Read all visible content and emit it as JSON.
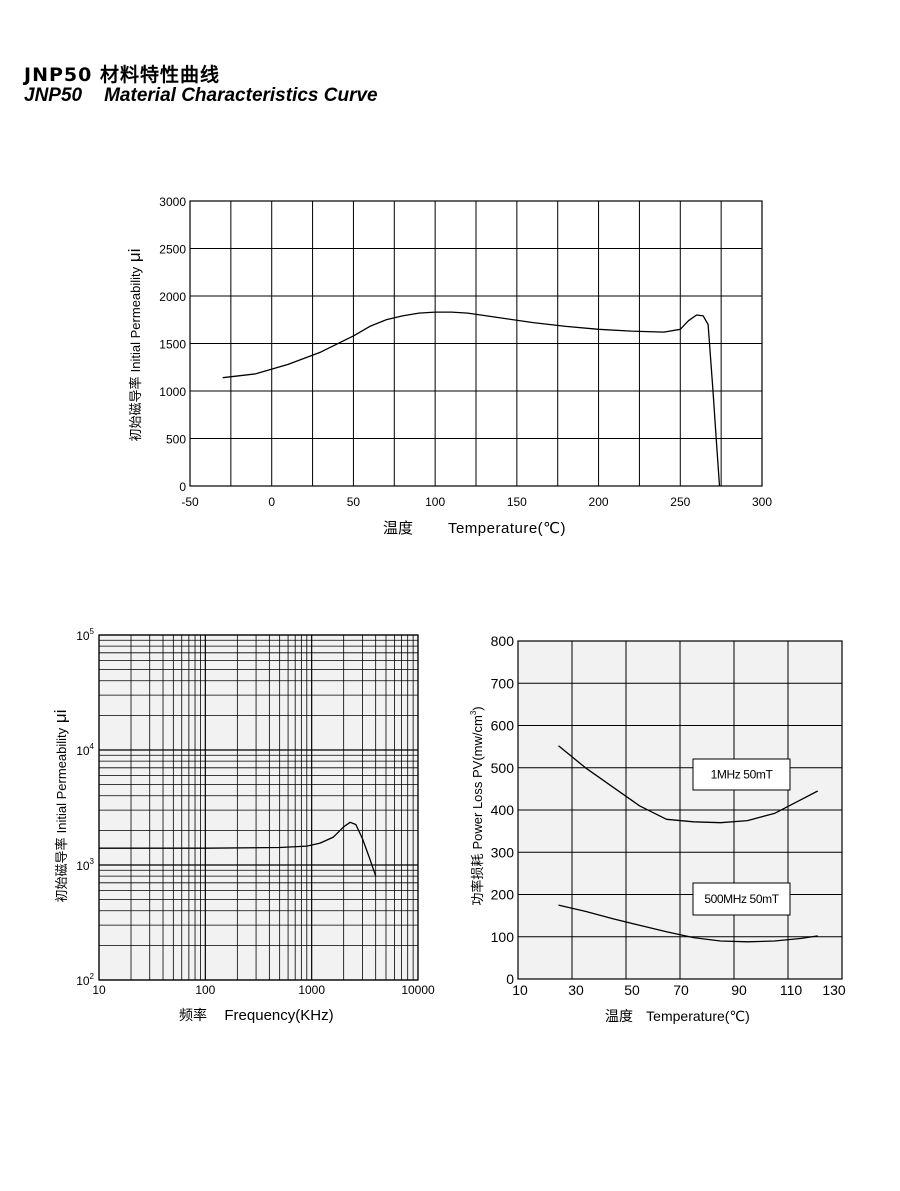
{
  "header": {
    "model": "JNP50",
    "title_cn": "材料特性曲线",
    "title_en": "Material Characteristics Curve"
  },
  "chart_data": [
    {
      "id": "mu-vs-temp",
      "type": "line",
      "title": "",
      "xlabel_cn": "温度",
      "xlabel": "Temperature(℃)",
      "ylabel_cn": "初始磁导率",
      "ylabel": "Initial Permeability",
      "ylabel_symbol": "μi",
      "xlim": [
        -50,
        300
      ],
      "ylim": [
        0,
        3000
      ],
      "xticks": [
        -50,
        0,
        50,
        100,
        150,
        200,
        250,
        300
      ],
      "yticks": [
        0,
        500,
        1000,
        1500,
        2000,
        2500,
        3000
      ],
      "grid": true,
      "series": [
        {
          "x": [
            -30,
            -10,
            10,
            30,
            50,
            60,
            70,
            80,
            90,
            100,
            110,
            120,
            140,
            160,
            180,
            200,
            220,
            240,
            250,
            255,
            260,
            264,
            267,
            270,
            272,
            274
          ],
          "y": [
            1140,
            1180,
            1280,
            1410,
            1580,
            1680,
            1750,
            1790,
            1820,
            1830,
            1830,
            1820,
            1770,
            1720,
            1680,
            1650,
            1630,
            1620,
            1650,
            1740,
            1800,
            1790,
            1700,
            1000,
            500,
            0
          ]
        }
      ]
    },
    {
      "id": "mu-vs-freq",
      "type": "line",
      "title": "",
      "xlabel_cn": "频率",
      "xlabel": "Frequency(KHz)",
      "ylabel_cn": "初始磁导率",
      "ylabel": "Initial Permeability",
      "ylabel_symbol": "μi",
      "xscale": "log",
      "yscale": "log",
      "xlim": [
        10,
        10000
      ],
      "ylim": [
        100,
        100000
      ],
      "xticks": [
        10,
        100,
        1000,
        10000
      ],
      "ytick_labels": [
        {
          "base": "10",
          "exp": "2"
        },
        {
          "base": "10",
          "exp": "3"
        },
        {
          "base": "10",
          "exp": "4"
        },
        {
          "base": "10",
          "exp": "5"
        }
      ],
      "grid": true,
      "series": [
        {
          "x": [
            10,
            100,
            500,
            900,
            1200,
            1600,
            2000,
            2300,
            2600,
            3000,
            3500,
            4000
          ],
          "y": [
            1400,
            1400,
            1420,
            1460,
            1550,
            1750,
            2150,
            2350,
            2250,
            1700,
            1150,
            800
          ]
        }
      ]
    },
    {
      "id": "pv-vs-temp",
      "type": "line",
      "title": "",
      "xlabel_cn": "温度",
      "xlabel": "Temperature(℃)",
      "ylabel_cn": "功率损耗",
      "ylabel": "Power Loss PV(mw/cm",
      "ylabel_sup": "3",
      "xlim": [
        10,
        130
      ],
      "ylim": [
        0,
        800
      ],
      "xticks": [
        10,
        30,
        50,
        70,
        90,
        110,
        130
      ],
      "yticks": [
        0,
        100,
        200,
        300,
        400,
        500,
        600,
        700,
        800
      ],
      "grid": true,
      "series": [
        {
          "name": "1MHz 50mT",
          "x": [
            25,
            35,
            45,
            55,
            65,
            75,
            85,
            95,
            105,
            115,
            121
          ],
          "y": [
            552,
            500,
            455,
            410,
            378,
            372,
            370,
            375,
            392,
            425,
            445
          ]
        },
        {
          "name": "500MHz 50mT",
          "x": [
            25,
            35,
            45,
            55,
            65,
            75,
            85,
            95,
            105,
            115,
            121
          ],
          "y": [
            175,
            160,
            143,
            127,
            112,
            98,
            90,
            88,
            90,
            96,
            102
          ]
        }
      ]
    }
  ]
}
